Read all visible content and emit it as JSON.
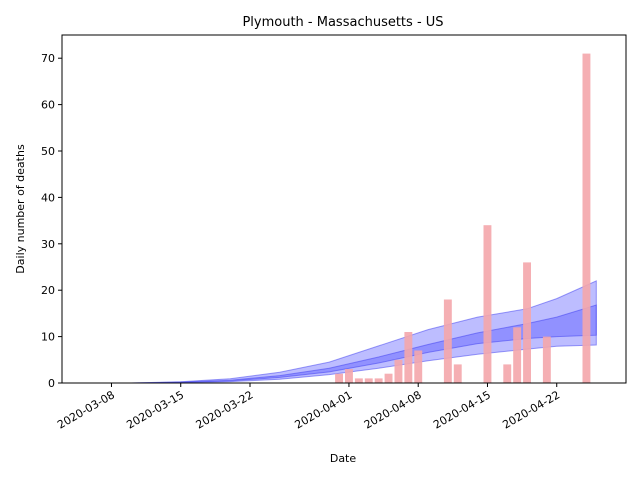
{
  "chart_data": {
    "type": "bar",
    "title": "Plymouth - Massachusetts - US",
    "xlabel": "Date",
    "ylabel": "Daily number of deaths",
    "ylim": [
      0,
      75
    ],
    "yticks": [
      0,
      10,
      20,
      30,
      40,
      50,
      60,
      70
    ],
    "xlim": [
      "2020-03-03",
      "2020-04-29"
    ],
    "xticks": [
      "2020-03-08",
      "2020-03-15",
      "2020-03-22",
      "2020-04-01",
      "2020-04-08",
      "2020-04-15",
      "2020-04-22"
    ],
    "grid": false,
    "legend": "none",
    "colors": {
      "bars": "#f4a6ab",
      "band": "#5b5bff",
      "band_edge": "#3c3cf0"
    },
    "bar_series": {
      "dates": [
        "2020-03-31",
        "2020-04-01",
        "2020-04-02",
        "2020-04-03",
        "2020-04-04",
        "2020-04-05",
        "2020-04-06",
        "2020-04-07",
        "2020-04-08",
        "2020-04-11",
        "2020-04-12",
        "2020-04-15",
        "2020-04-17",
        "2020-04-18",
        "2020-04-19",
        "2020-04-21",
        "2020-04-25"
      ],
      "values": [
        2,
        3,
        1,
        1,
        1,
        2,
        5,
        11,
        7,
        18,
        4,
        34,
        4,
        12,
        26,
        10,
        71
      ]
    },
    "model_bands": {
      "dates": [
        "2020-03-10",
        "2020-03-15",
        "2020-03-20",
        "2020-03-25",
        "2020-03-30",
        "2020-04-04",
        "2020-04-09",
        "2020-04-14",
        "2020-04-19",
        "2020-04-22",
        "2020-04-26"
      ],
      "outer_low": [
        0,
        0.1,
        0.3,
        0.8,
        1.8,
        3.2,
        4.8,
        6.2,
        7.3,
        7.9,
        8.2
      ],
      "inner_low": [
        0,
        0.15,
        0.45,
        1.2,
        2.4,
        4.3,
        6.6,
        8.5,
        9.6,
        10.0,
        10.3
      ],
      "inner_high": [
        0,
        0.2,
        0.6,
        1.6,
        3.2,
        5.6,
        8.3,
        10.8,
        12.8,
        14.2,
        16.8
      ],
      "outer_high": [
        0,
        0.25,
        0.9,
        2.3,
        4.5,
        8.0,
        11.5,
        14.2,
        16.0,
        18.2,
        22.0
      ]
    }
  }
}
